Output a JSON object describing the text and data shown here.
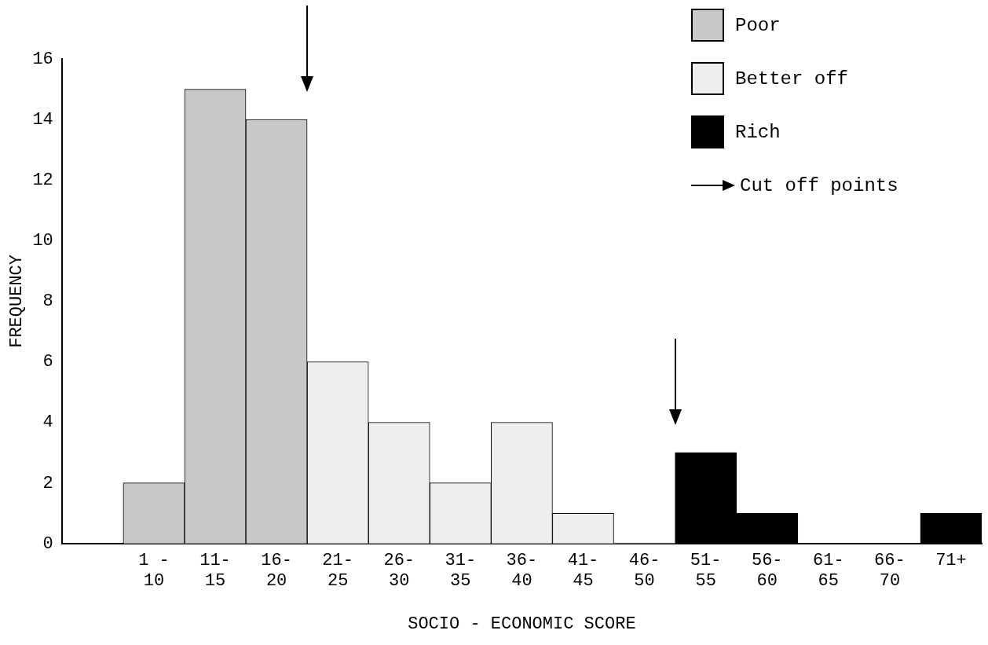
{
  "chart_data": {
    "type": "bar",
    "stacked": true,
    "xlabel": "SOCIO - ECONOMIC SCORE",
    "ylabel": "FREQUENCY",
    "categories": [
      null,
      "1 -\n10",
      "11-\n15",
      "16-\n20",
      "21-\n25",
      "26-\n30",
      "31-\n35",
      "36-\n40",
      "41-\n45",
      "46-\n50",
      "51-\n55",
      "56-\n60",
      "61-\n65",
      "66-\n70",
      "71+"
    ],
    "series": [
      {
        "name": "Poor",
        "color": "#c8c8c8",
        "values": [
          null,
          2,
          15,
          14,
          null,
          null,
          null,
          null,
          null,
          null,
          null,
          null,
          null,
          null,
          null
        ]
      },
      {
        "name": "Better off",
        "color": "#eeeeee",
        "values": [
          null,
          null,
          null,
          null,
          6,
          4,
          2,
          4,
          1,
          0,
          null,
          null,
          null,
          null,
          null
        ]
      },
      {
        "name": "Rich",
        "color": "#000000",
        "values": [
          null,
          null,
          null,
          null,
          null,
          null,
          null,
          null,
          null,
          null,
          3,
          1,
          0,
          0,
          1
        ]
      }
    ],
    "ylim": [
      0,
      16
    ],
    "yticks": [
      0,
      2,
      4,
      6,
      8,
      10,
      12,
      14,
      16
    ],
    "grid": false,
    "legend": "top right",
    "annotations": [
      "Cut off points"
    ]
  }
}
